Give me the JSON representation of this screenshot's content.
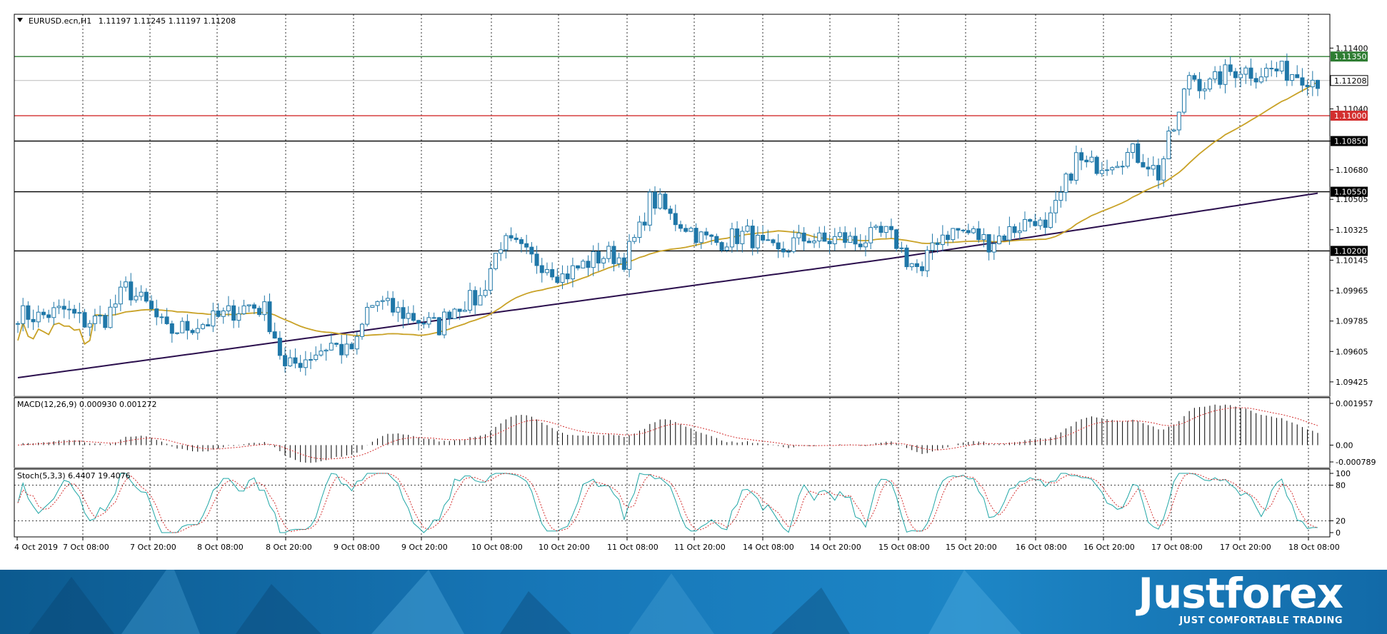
{
  "chart_data": [
    {
      "type": "candlestick",
      "symbol_label": "EURUSD.ecn,H1",
      "ohlc_label": "1.11197 1.11245 1.11197 1.11208",
      "ylim": [
        1.0934,
        1.116
      ],
      "price_ticks": [
        "1.11400",
        "1.11208",
        "1.11040",
        "1.10850",
        "1.10680",
        "1.10505",
        "1.10325",
        "1.10145",
        "1.09965",
        "1.09785",
        "1.09605",
        "1.09425"
      ],
      "levels": [
        {
          "label": "1.11350",
          "value": 1.1135,
          "color": "#2e7d32"
        },
        {
          "label": "1.11000",
          "value": 1.11,
          "color": "#d32f2f"
        },
        {
          "label": "1.10850",
          "value": 1.1085,
          "color": "#000000"
        },
        {
          "label": "1.10550",
          "value": 1.1055,
          "color": "#000000"
        },
        {
          "label": "1.10200",
          "value": 1.102,
          "color": "#000000"
        }
      ],
      "current_price": {
        "label": "1.11208",
        "value": 1.11208
      },
      "ma_fast_color": "#c9a227",
      "ma_slow_color": "#2b0f4d",
      "candle_color": "#1f77a8",
      "x_labels": [
        "4 Oct 2019",
        "7 Oct 08:00",
        "7 Oct 20:00",
        "8 Oct 08:00",
        "8 Oct 20:00",
        "9 Oct 08:00",
        "9 Oct 20:00",
        "10 Oct 08:00",
        "10 Oct 20:00",
        "11 Oct 08:00",
        "11 Oct 20:00",
        "14 Oct 08:00",
        "14 Oct 20:00",
        "15 Oct 08:00",
        "15 Oct 20:00",
        "16 Oct 08:00",
        "16 Oct 20:00",
        "17 Oct 08:00",
        "17 Oct 20:00",
        "18 Oct 08:00"
      ],
      "anchors": [
        [
          0,
          1.0983
        ],
        [
          4,
          1.0981
        ],
        [
          9,
          1.0985
        ],
        [
          13,
          1.0978
        ],
        [
          17,
          1.098
        ],
        [
          21,
          1.0998
        ],
        [
          25,
          1.0988
        ],
        [
          29,
          1.0972
        ],
        [
          33,
          1.0975
        ],
        [
          37,
          1.0978
        ],
        [
          41,
          1.0983
        ],
        [
          45,
          1.0988
        ],
        [
          48,
          1.0985
        ],
        [
          50,
          1.097
        ],
        [
          52,
          1.095
        ],
        [
          55,
          1.0955
        ],
        [
          58,
          1.096
        ],
        [
          61,
          1.0965
        ],
        [
          64,
          1.096
        ],
        [
          66,
          1.0965
        ],
        [
          68,
          1.0985
        ],
        [
          70,
          1.099
        ],
        [
          73,
          1.0985
        ],
        [
          76,
          1.0982
        ],
        [
          79,
          1.0978
        ],
        [
          82,
          1.0975
        ],
        [
          84,
          1.0985
        ],
        [
          87,
          1.099
        ],
        [
          90,
          1.0992
        ],
        [
          92,
          1.101
        ],
        [
          94,
          1.1025
        ],
        [
          97,
          1.1022
        ],
        [
          100,
          1.1015
        ],
        [
          103,
          1.1012
        ],
        [
          106,
          1.1005
        ],
        [
          109,
          1.101
        ],
        [
          112,
          1.1015
        ],
        [
          115,
          1.1018
        ],
        [
          118,
          1.1015
        ],
        [
          121,
          1.1032
        ],
        [
          123,
          1.105
        ],
        [
          125,
          1.1048
        ],
        [
          127,
          1.104
        ],
        [
          130,
          1.1035
        ],
        [
          133,
          1.1028
        ],
        [
          136,
          1.1025
        ],
        [
          139,
          1.1028
        ],
        [
          142,
          1.103
        ],
        [
          145,
          1.1022
        ],
        [
          148,
          1.1018
        ],
        [
          151,
          1.1025
        ],
        [
          154,
          1.1028
        ],
        [
          157,
          1.1025
        ],
        [
          160,
          1.1028
        ],
        [
          163,
          1.1025
        ],
        [
          166,
          1.1028
        ],
        [
          169,
          1.103
        ],
        [
          171,
          1.1025
        ],
        [
          173,
          1.1015
        ],
        [
          175,
          1.101
        ],
        [
          176,
          1.1005
        ],
        [
          178,
          1.1025
        ],
        [
          180,
          1.103
        ],
        [
          183,
          1.1032
        ],
        [
          186,
          1.103
        ],
        [
          189,
          1.1025
        ],
        [
          192,
          1.103
        ],
        [
          195,
          1.1035
        ],
        [
          198,
          1.104
        ],
        [
          200,
          1.103
        ],
        [
          202,
          1.1045
        ],
        [
          204,
          1.106
        ],
        [
          206,
          1.1075
        ],
        [
          208,
          1.107
        ],
        [
          211,
          1.1072
        ],
        [
          214,
          1.1075
        ],
        [
          217,
          1.1078
        ],
        [
          220,
          1.1072
        ],
        [
          222,
          1.1065
        ],
        [
          224,
          1.1085
        ],
        [
          226,
          1.11
        ],
        [
          228,
          1.1125
        ],
        [
          230,
          1.112
        ],
        [
          232,
          1.1118
        ],
        [
          235,
          1.1125
        ],
        [
          238,
          1.1128
        ],
        [
          241,
          1.1125
        ],
        [
          244,
          1.1127
        ],
        [
          247,
          1.1126
        ],
        [
          250,
          1.1124
        ],
        [
          253,
          1.1121
        ]
      ]
    },
    {
      "type": "bar",
      "label": "MACD(12,26,9) 0.000930 0.001272",
      "ylim": [
        -0.000789,
        0.001957
      ],
      "ticks": [
        "0.001957",
        "0.00",
        "-0.000789"
      ]
    },
    {
      "type": "line",
      "label": "Stoch(5,3,3) 6.4407 19.4076",
      "ylim": [
        0,
        100
      ],
      "ticks": [
        "100",
        "80",
        "20",
        "0"
      ],
      "levels": [
        80,
        20
      ]
    }
  ],
  "brand": {
    "name": "Justforex",
    "tagline": "JUST COMFORTABLE TRADING"
  }
}
